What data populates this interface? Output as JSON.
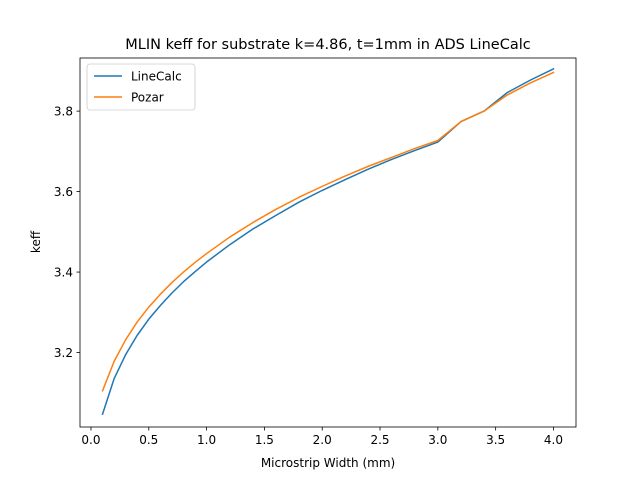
{
  "chart_data": {
    "type": "line",
    "title": "MLIN keff for substrate k=4.86, t=1mm in ADS LineCalc",
    "xlabel": "Microstrip Width (mm)",
    "ylabel": "keff",
    "xlim": [
      -0.095,
      4.195
    ],
    "ylim": [
      3.015,
      3.932
    ],
    "xticks": [
      0.0,
      0.5,
      1.0,
      1.5,
      2.0,
      2.5,
      3.0,
      3.5,
      4.0
    ],
    "xtick_labels": [
      "0.0",
      "0.5",
      "1.0",
      "1.5",
      "2.0",
      "2.5",
      "3.0",
      "3.5",
      "4.0"
    ],
    "yticks": [
      3.2,
      3.4,
      3.6,
      3.8
    ],
    "ytick_labels": [
      "3.2",
      "3.4",
      "3.6",
      "3.8"
    ],
    "grid": false,
    "legend_position": "top-left",
    "series": [
      {
        "name": "LineCalc",
        "color": "#1f77b4",
        "x": [
          0.1,
          0.2,
          0.3,
          0.4,
          0.5,
          0.6,
          0.7,
          0.8,
          0.9,
          1.0,
          1.2,
          1.4,
          1.6,
          1.8,
          2.0,
          2.2,
          2.4,
          2.6,
          2.8,
          3.0,
          3.2,
          3.4,
          3.6,
          3.8,
          4.0
        ],
        "y": [
          3.047,
          3.135,
          3.195,
          3.243,
          3.283,
          3.317,
          3.348,
          3.376,
          3.401,
          3.425,
          3.468,
          3.507,
          3.541,
          3.574,
          3.603,
          3.63,
          3.656,
          3.68,
          3.702,
          3.723,
          3.774,
          3.8,
          3.846,
          3.877,
          3.905
        ]
      },
      {
        "name": "Pozar",
        "color": "#ff7f0e",
        "x": [
          0.1,
          0.2,
          0.3,
          0.4,
          0.5,
          0.6,
          0.7,
          0.8,
          0.9,
          1.0,
          1.2,
          1.4,
          1.6,
          1.8,
          2.0,
          2.2,
          2.4,
          2.6,
          2.8,
          3.0,
          3.2,
          3.4,
          3.6,
          3.8,
          4.0
        ],
        "y": [
          3.105,
          3.178,
          3.232,
          3.276,
          3.313,
          3.345,
          3.374,
          3.4,
          3.424,
          3.446,
          3.487,
          3.523,
          3.556,
          3.586,
          3.613,
          3.639,
          3.663,
          3.685,
          3.707,
          3.727,
          3.774,
          3.8,
          3.84,
          3.87,
          3.896
        ]
      }
    ]
  }
}
